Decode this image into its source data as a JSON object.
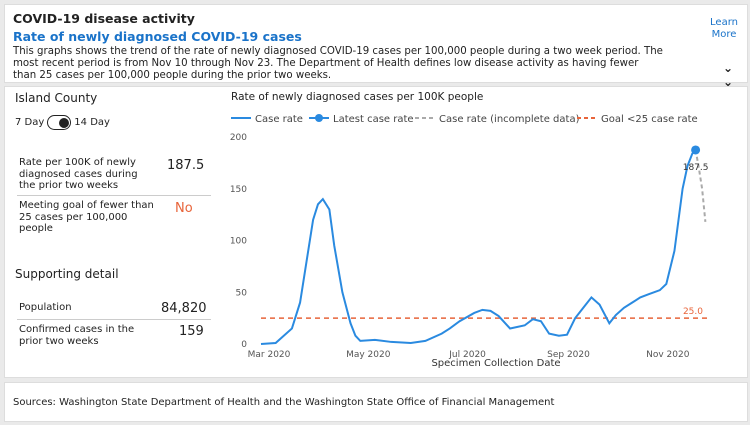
{
  "header": {
    "title": "COVID-19 disease activity",
    "subtitle": "Rate of newly diagnosed COVID-19 cases",
    "description": "This graphs shows the trend of the rate of newly diagnosed COVID-19 cases per 100,000 people during a two week period. The most recent period is from Nov 10 through Nov 23. The Department of Health defines low disease activity as having fewer than 25 cases per 100,000 people during the prior two weeks.",
    "learn_more": "Learn More"
  },
  "left": {
    "county": "Island County",
    "toggle_left": "7 Day",
    "toggle_right": "14 Day",
    "rate_label": "Rate per 100K of newly diagnosed cases during the prior two weeks",
    "rate_value": "187.5",
    "goal_label": "Meeting goal of fewer than 25 cases per 100,000 people",
    "goal_value": "No",
    "supporting": "Supporting detail",
    "population_label": "Population",
    "population_value": "84,820",
    "confirmed_label": "Confirmed cases in the prior two weeks",
    "confirmed_value": "159"
  },
  "footer": {
    "sources": "Sources: Washington State Department of Health and the Washington State Office of Financial Management"
  },
  "colors": {
    "accent": "#1a73c9",
    "line": "#2a8ae0",
    "goal": "#e8643a",
    "no": "#e8643a",
    "incomplete": "#aaaaaa"
  },
  "chart_data": {
    "type": "line",
    "title": "Rate of newly diagnosed cases per 100K people",
    "xlabel": "Specimen Collection Date",
    "ylabel": "",
    "ylim": [
      0,
      200
    ],
    "yticks": [
      0,
      50,
      100,
      150,
      200
    ],
    "xticks": [
      "Mar 2020",
      "May 2020",
      "Jul 2020",
      "Sep 2020",
      "Nov 2020"
    ],
    "legend": [
      "Case rate",
      "Latest case rate",
      "Case rate (incomplete data)",
      "Goal <25 case rate"
    ],
    "legend_position": "top",
    "goal": 25.0,
    "goal_label": "25.0",
    "latest_value": 187.5,
    "latest_label": "187.5",
    "series": [
      {
        "name": "Case rate",
        "x": [
          "2020-03-01",
          "2020-03-10",
          "2020-03-20",
          "2020-03-25",
          "2020-03-30",
          "2020-04-02",
          "2020-04-05",
          "2020-04-08",
          "2020-04-12",
          "2020-04-15",
          "2020-04-20",
          "2020-04-25",
          "2020-04-28",
          "2020-05-01",
          "2020-05-10",
          "2020-05-20",
          "2020-06-01",
          "2020-06-10",
          "2020-06-20",
          "2020-06-25",
          "2020-07-01",
          "2020-07-10",
          "2020-07-15",
          "2020-07-20",
          "2020-07-25",
          "2020-08-01",
          "2020-08-10",
          "2020-08-15",
          "2020-08-20",
          "2020-08-25",
          "2020-08-31",
          "2020-09-05",
          "2020-09-10",
          "2020-09-15",
          "2020-09-20",
          "2020-09-25",
          "2020-10-01",
          "2020-10-05",
          "2020-10-10",
          "2020-10-15",
          "2020-10-20",
          "2020-10-25",
          "2020-11-01",
          "2020-11-05",
          "2020-11-10",
          "2020-11-15",
          "2020-11-18",
          "2020-11-21",
          "2020-11-23"
        ],
        "y": [
          0,
          1,
          15,
          40,
          90,
          120,
          135,
          140,
          130,
          95,
          50,
          20,
          8,
          3,
          4,
          2,
          1,
          3,
          10,
          15,
          22,
          30,
          33,
          32,
          27,
          15,
          18,
          24,
          22,
          10,
          8,
          9,
          25,
          35,
          45,
          38,
          20,
          28,
          35,
          40,
          45,
          48,
          52,
          58,
          90,
          150,
          172,
          184,
          187.5
        ]
      },
      {
        "name": "Case rate (incomplete data)",
        "x": [
          "2020-11-23",
          "2020-11-25",
          "2020-11-27",
          "2020-11-29"
        ],
        "y": [
          187.5,
          170,
          150,
          118
        ]
      }
    ]
  }
}
